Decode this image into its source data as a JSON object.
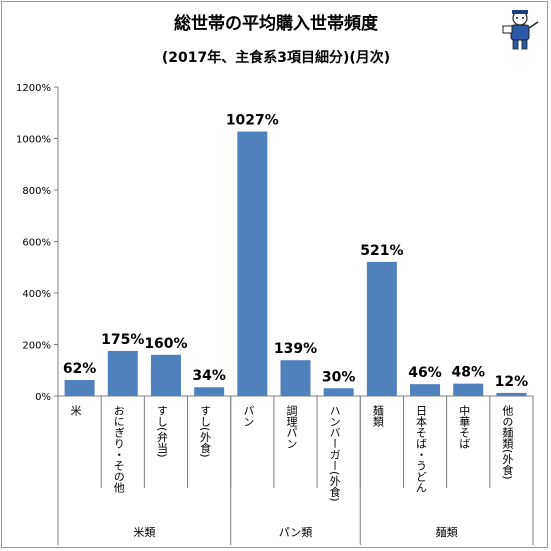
{
  "title": "総世帯の平均購入世帯頻度",
  "subtitle": "(2017年、主食系3項目細分)(月次)",
  "logo_icon": "mascot-character-icon",
  "chart_data": {
    "type": "bar",
    "title": "総世帯の平均購入世帯頻度",
    "subtitle": "(2017年、主食系3項目細分)(月次)",
    "categories": [
      "米",
      "おにぎり・その他",
      "すし(弁当)",
      "すし(外食)",
      "パン",
      "調理パン",
      "ハンバーガー(外食)",
      "麺類",
      "日本そば・うどん",
      "中華そば",
      "他の麺類(外食)"
    ],
    "values": [
      62,
      175,
      160,
      34,
      1027,
      139,
      30,
      521,
      46,
      48,
      12
    ],
    "data_labels": [
      "62%",
      "175%",
      "160%",
      "34%",
      "1027%",
      "139%",
      "30%",
      "521%",
      "46%",
      "48%",
      "12%"
    ],
    "groups": [
      {
        "label": "米類",
        "count": 4
      },
      {
        "label": "パン類",
        "count": 3
      },
      {
        "label": "麺類",
        "count": 4
      }
    ],
    "yticks": [
      "0%",
      "200%",
      "400%",
      "600%",
      "800%",
      "1000%",
      "1200%"
    ],
    "ylim": [
      0,
      1200
    ],
    "grid": false,
    "bar_color": "#4f81bd"
  }
}
